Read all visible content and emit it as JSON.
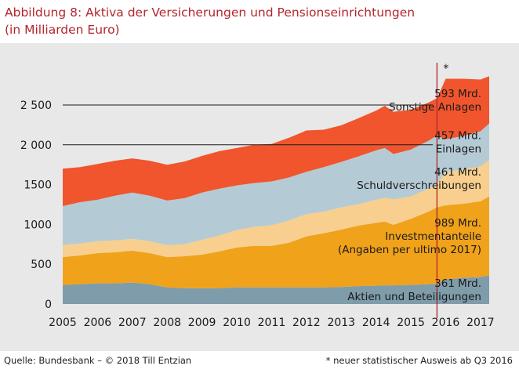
{
  "title_line1": "Abbildung 8: Aktiva der Versicherungen und Pensionseinrichtungen",
  "title_line2": "(in Milliarden Euro)",
  "source": "Quelle: Bundesbank – © 2018 Till Entzian",
  "footnote": "* neuer statistischer Ausweis ab Q3 2016",
  "chart_data": {
    "type": "area",
    "stacked": true,
    "x": [
      2005,
      2005.5,
      2006,
      2006.5,
      2007,
      2007.5,
      2008,
      2008.5,
      2009,
      2009.5,
      2010,
      2010.5,
      2011,
      2011.5,
      2012,
      2012.5,
      2013,
      2013.5,
      2014,
      2014.25,
      2014.5,
      2015,
      2015.5,
      2015.75,
      2016,
      2016.5,
      2017,
      2017.25
    ],
    "xlim": [
      2005,
      2017.25
    ],
    "ylim": [
      0,
      2900
    ],
    "y_ticks": [
      {
        "value": 0,
        "label": "0"
      },
      {
        "value": 500,
        "label": "500"
      },
      {
        "value": 1000,
        "label": "1000"
      },
      {
        "value": 1500,
        "label": "1500"
      },
      {
        "value": 2000,
        "label": "2 000"
      },
      {
        "value": 2500,
        "label": "2 500"
      }
    ],
    "x_ticks": [
      "2005",
      "2006",
      "2007",
      "2008",
      "2009",
      "2010",
      "2011",
      "2012",
      "2013",
      "2014",
      "2015",
      "2016",
      "2017"
    ],
    "break_x": 2015.75,
    "break_marker": "*",
    "series": [
      {
        "key": "aktien",
        "color": "#7f9cab",
        "values": [
          240,
          250,
          260,
          260,
          270,
          250,
          210,
          200,
          200,
          200,
          210,
          210,
          210,
          210,
          210,
          210,
          215,
          225,
          230,
          235,
          235,
          240,
          250,
          255,
          310,
          330,
          340,
          361
        ]
      },
      {
        "key": "invest",
        "color": "#f0a21a",
        "values": [
          350,
          360,
          380,
          390,
          400,
          390,
          380,
          400,
          420,
          460,
          500,
          520,
          520,
          560,
          640,
          680,
          720,
          760,
          790,
          800,
          760,
          830,
          910,
          960,
          930,
          930,
          950,
          989
        ]
      },
      {
        "key": "schuld",
        "color": "#f8cf8e",
        "values": [
          150,
          150,
          150,
          150,
          150,
          150,
          150,
          150,
          190,
          200,
          220,
          240,
          260,
          280,
          280,
          270,
          280,
          270,
          290,
          300,
          320,
          280,
          290,
          290,
          420,
          430,
          440,
          461
        ]
      },
      {
        "key": "einlagen",
        "color": "#b4cbd5",
        "values": [
          490,
          520,
          520,
          560,
          580,
          570,
          560,
          580,
          590,
          590,
          560,
          550,
          550,
          540,
          530,
          560,
          570,
          600,
          620,
          625,
          570,
          590,
          600,
          610,
          410,
          420,
          440,
          457
        ]
      },
      {
        "key": "sonstige",
        "color": "#f0552e",
        "values": [
          470,
          440,
          450,
          440,
          430,
          440,
          450,
          460,
          460,
          470,
          470,
          480,
          470,
          500,
          520,
          470,
          460,
          480,
          500,
          530,
          530,
          500,
          480,
          470,
          760,
          720,
          650,
          593
        ]
      }
    ],
    "labels": [
      {
        "key": "sonstige",
        "lines": [
          "593 Mrd.",
          "Sonstige Anlagen"
        ]
      },
      {
        "key": "einlagen",
        "lines": [
          "457 Mrd.",
          "Einlagen"
        ]
      },
      {
        "key": "schuld",
        "lines": [
          "461 Mrd.",
          "Schuldverschreibungen"
        ]
      },
      {
        "key": "invest",
        "lines": [
          "989 Mrd.",
          "Investmentanteile",
          "(Angaben per ultimo 2017)"
        ]
      },
      {
        "key": "aktien",
        "lines": [
          "361 Mrd.",
          "Aktien und Beteiligungen"
        ]
      }
    ]
  }
}
